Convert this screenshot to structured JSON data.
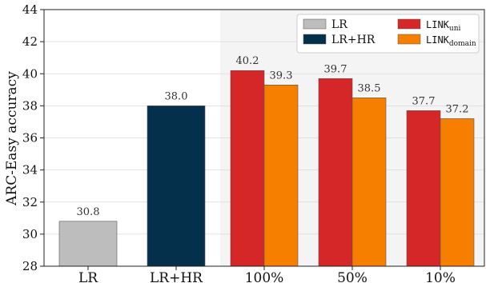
{
  "chart_data": {
    "type": "bar",
    "ylabel": "ARC-Easy accuracy",
    "ylim": [
      28,
      44
    ],
    "yticks": [
      28,
      30,
      32,
      34,
      36,
      38,
      40,
      42,
      44
    ],
    "categories": [
      "LR",
      "LR+HR",
      "100%",
      "50%",
      "10%"
    ],
    "grid": true,
    "shaded_region": {
      "from_category": "100%",
      "to_category": "10%",
      "color": "#f4f4f4"
    },
    "series": [
      {
        "name": "LR",
        "legend_label": "LR",
        "color": "#bdbdbd",
        "values": [
          30.8,
          null,
          null,
          null,
          null
        ],
        "labels": [
          "30.8",
          null,
          null,
          null,
          null
        ]
      },
      {
        "name": "LR+HR",
        "legend_label": "LR+HR",
        "color": "#04304b",
        "values": [
          null,
          38.0,
          null,
          null,
          null
        ],
        "labels": [
          null,
          "38.0",
          null,
          null,
          null
        ]
      },
      {
        "name": "LINK_uni",
        "legend_main": "LINK",
        "legend_sub": "uni",
        "color": "#d62728",
        "values": [
          null,
          null,
          40.2,
          39.7,
          37.7
        ],
        "labels": [
          null,
          null,
          "40.2",
          "39.7",
          "37.7"
        ]
      },
      {
        "name": "LINK_domain",
        "legend_main": "LINK",
        "legend_sub": "domain",
        "color": "#f77f00",
        "values": [
          null,
          null,
          39.3,
          38.5,
          37.2
        ],
        "labels": [
          null,
          null,
          "39.3",
          "38.5",
          "37.2"
        ]
      }
    ],
    "legend": {
      "position": "top-right",
      "columns": 2
    }
  }
}
